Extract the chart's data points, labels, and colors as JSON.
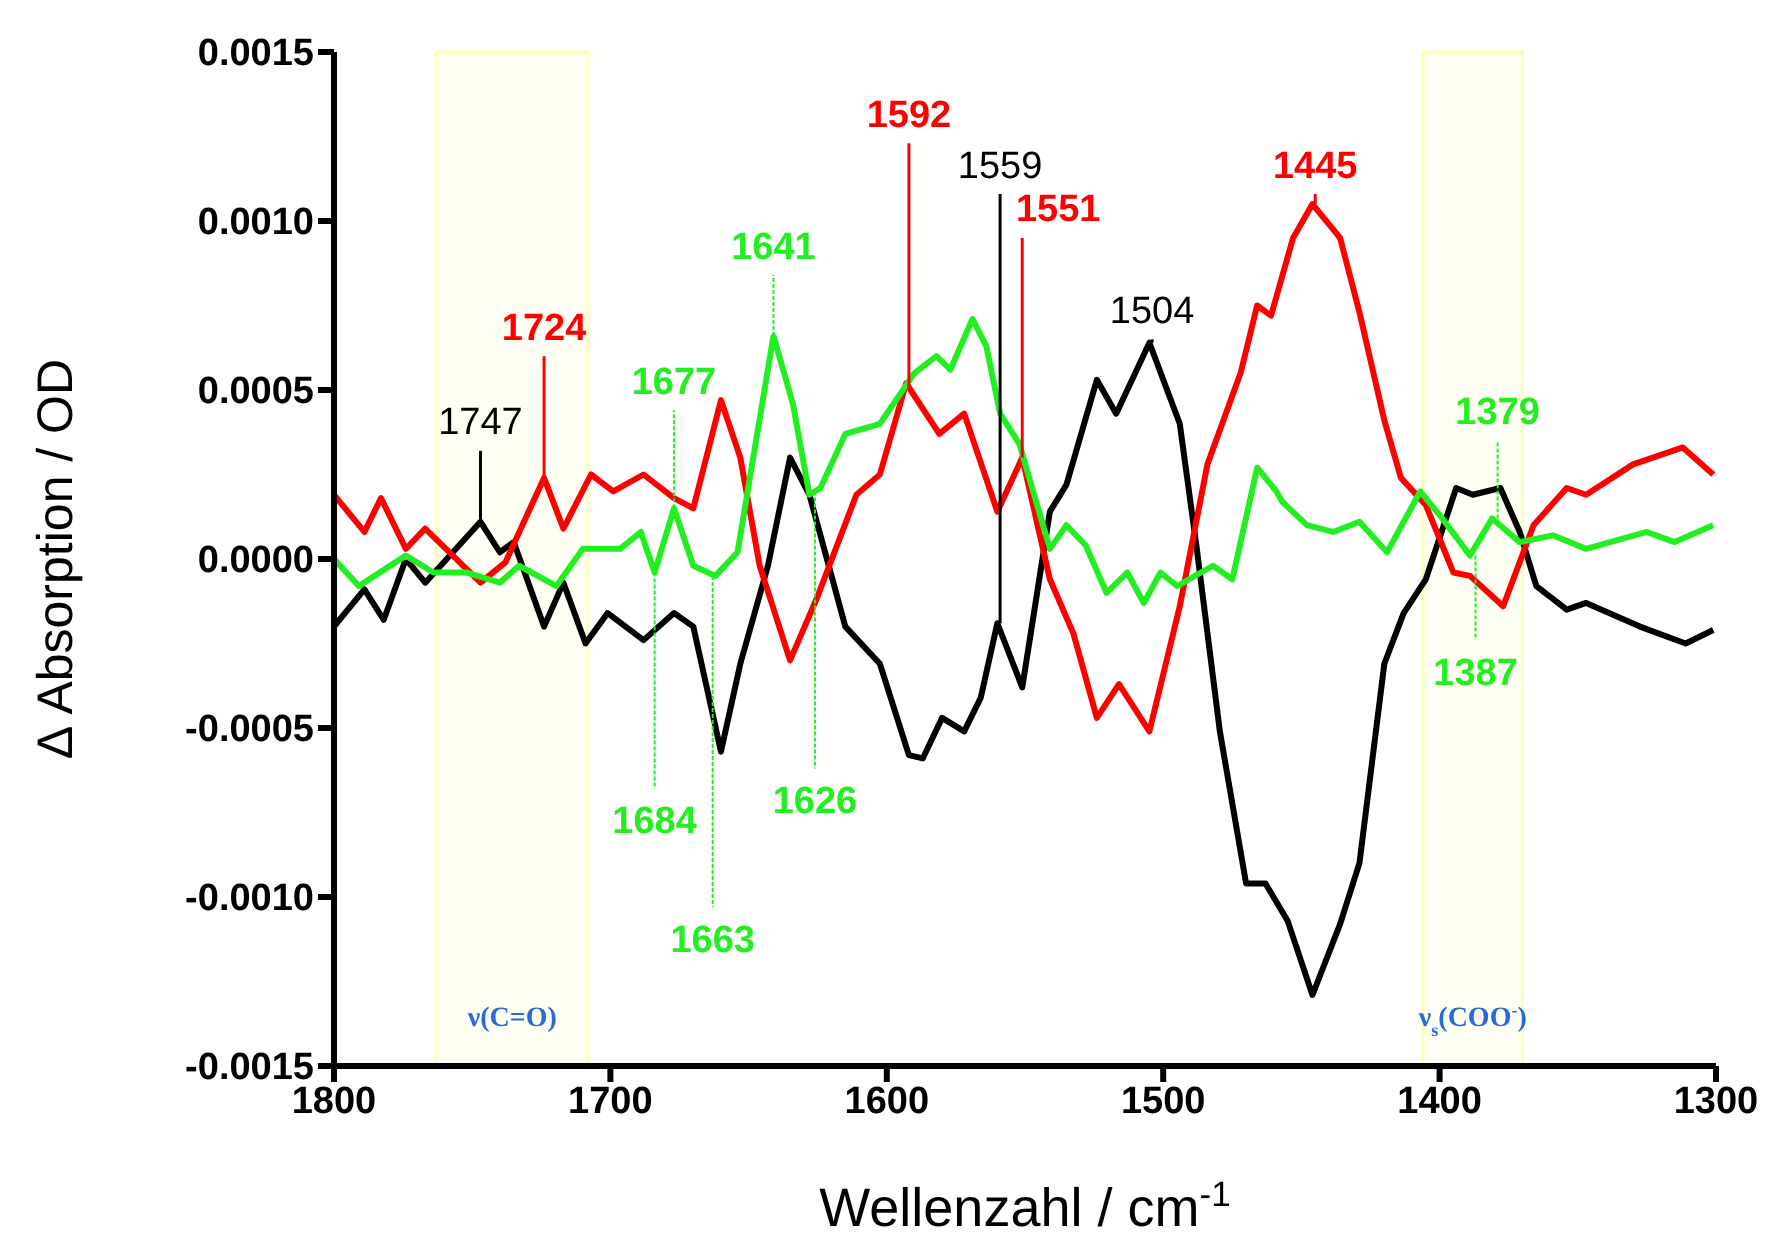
{
  "chart_data": {
    "type": "line",
    "xlabel": "Wellenzahl / cm$^{-1}$",
    "ylabel": "Δ Absorption / OD",
    "xlim": [
      1800,
      1300
    ],
    "xticks": [
      1800,
      1700,
      1600,
      1500,
      1400,
      1300
    ],
    "ylim": [
      -0.0015,
      0.0015
    ],
    "yticks": [
      -0.0015,
      {
        "value": -0.001,
        "label": "-0.0010"
      },
      -0.0005,
      {
        "value": 0,
        "label": "0.0000"
      },
      0.0005,
      {
        "value": 0.001,
        "label": "0.0010"
      },
      0.0015
    ],
    "marker": "none",
    "line_style": "solid",
    "series": [
      {
        "color": "#000000",
        "x": [
          1800,
          1789,
          1782,
          1774,
          1767,
          1747,
          1740,
          1735,
          1724,
          1717,
          1709,
          1701,
          1688,
          1677,
          1670,
          1660,
          1653,
          1643,
          1635,
          1628,
          1615,
          1602.5,
          1592,
          1587,
          1580,
          1572,
          1566,
          1560,
          1551,
          1541,
          1535,
          1524,
          1517,
          1505,
          1494,
          1488,
          1479.5,
          1470,
          1463,
          1455,
          1446,
          1436,
          1429,
          1420,
          1413,
          1405,
          1394,
          1388,
          1378,
          1371,
          1365,
          1354,
          1347,
          1327.5,
          1311,
          1301
        ],
        "values": [
          -0.0002,
          -9e-05,
          -0.00018,
          0,
          -7e-05,
          0.00011,
          2e-05,
          5e-05,
          -0.0002,
          -7e-05,
          -0.00025,
          -0.00016,
          -0.00024,
          -0.00016,
          -0.0002,
          -0.00057,
          -0.00031,
          -2e-05,
          0.0003,
          0.00019,
          -0.0002,
          -0.00031,
          -0.00058,
          -0.00059,
          -0.00047,
          -0.00051,
          -0.00041,
          -0.00019,
          -0.00038,
          0.00014,
          0.00022,
          0.00053,
          0.00043,
          0.00064,
          0.0004,
          4e-05,
          -0.00051,
          -0.00096,
          -0.00096,
          -0.00107,
          -0.00129,
          -0.00108,
          -0.0009,
          -0.00031,
          -0.00016,
          -6e-05,
          0.00021,
          0.00019,
          0.00021,
          8e-05,
          -8e-05,
          -0.00015,
          -0.00013,
          -0.0002,
          -0.00025,
          -0.00021
        ]
      },
      {
        "color": "#ff0000",
        "x": [
          1800,
          1789,
          1783,
          1774,
          1767,
          1747,
          1738,
          1724,
          1717,
          1707,
          1699,
          1688,
          1677,
          1670,
          1660,
          1653,
          1646,
          1635,
          1625.5,
          1611,
          1602.5,
          1593,
          1581,
          1572,
          1560,
          1551,
          1541,
          1532.5,
          1524,
          1516,
          1505,
          1494,
          1484,
          1472,
          1466,
          1461,
          1453,
          1446,
          1436,
          1429,
          1420,
          1414,
          1405,
          1395,
          1389,
          1377,
          1366,
          1354,
          1347,
          1330,
          1312,
          1301
        ],
        "values": [
          0.00019,
          8e-05,
          0.00018,
          3e-05,
          9e-05,
          -7e-05,
          -1e-05,
          0.00024,
          9e-05,
          0.00025,
          0.0002,
          0.00025,
          0.00018,
          0.00015,
          0.00047,
          0.0003,
          -2e-05,
          -0.0003,
          -0.00012,
          0.00019,
          0.00025,
          0.00052,
          0.00037,
          0.00043,
          0.00014,
          0.0003,
          -6e-05,
          -0.00022,
          -0.00047,
          -0.00037,
          -0.00051,
          -0.00014,
          0.00028,
          0.00055,
          0.00075,
          0.00072,
          0.00095,
          0.00105,
          0.00095,
          0.00073,
          0.00041,
          0.00024,
          0.00016,
          -4e-05,
          -5e-05,
          -0.00014,
          0.0001,
          0.00021,
          0.00019,
          0.00028,
          0.00033,
          0.00025
        ]
      },
      {
        "color": "#22ee22",
        "x": [
          1800,
          1791,
          1774,
          1764,
          1752,
          1740,
          1733,
          1719.5,
          1710,
          1696.5,
          1689,
          1684,
          1677,
          1670,
          1662,
          1654,
          1641,
          1634,
          1628,
          1624,
          1615,
          1602.5,
          1590,
          1582,
          1577,
          1569,
          1564,
          1559,
          1552,
          1541,
          1535,
          1528,
          1520.5,
          1513,
          1507,
          1501,
          1495,
          1482,
          1475,
          1466,
          1459,
          1457,
          1448,
          1438.5,
          1429,
          1419,
          1407,
          1399,
          1389,
          1381,
          1371,
          1359,
          1347,
          1325,
          1315,
          1301
        ],
        "values": [
          0,
          -8e-05,
          1e-05,
          -4e-05,
          -4e-05,
          -7e-05,
          -2e-05,
          -8e-05,
          3e-05,
          3e-05,
          8e-05,
          -4e-05,
          0.00015,
          -2e-05,
          -5e-05,
          2e-05,
          0.00066,
          0.00046,
          0.00019,
          0.00021,
          0.00037,
          0.0004,
          0.00055,
          0.0006,
          0.00056,
          0.00071,
          0.00063,
          0.00043,
          0.00034,
          3e-05,
          0.0001,
          4e-05,
          -0.0001,
          -4e-05,
          -0.00013,
          -4e-05,
          -8e-05,
          -2e-05,
          -6e-05,
          0.00027,
          0.0002,
          0.00017,
          0.0001,
          8e-05,
          0.00011,
          2e-05,
          0.0002,
          0.00012,
          1e-05,
          0.00012,
          5e-05,
          7e-05,
          3e-05,
          8e-05,
          5e-05,
          0.0001
        ]
      }
    ],
    "bands": [
      {
        "axis": "x",
        "from": 1763,
        "to": 1708,
        "label": "ν(C=O)",
        "color": "#ffffb0"
      },
      {
        "axis": "x",
        "from": 1406,
        "to": 1370,
        "label": "ν$_{s}$(COO$^{-}$)",
        "color": "#ffffb0"
      }
    ],
    "annotations": [
      {
        "text": "1747",
        "x": 1747,
        "y": 0.00011
      },
      {
        "text": "1724",
        "x": 1724,
        "y": 0.00024
      },
      {
        "text": "1677",
        "x": 1677,
        "y": 0.00015
      },
      {
        "text": "1641",
        "x": 1641,
        "y": 0.00066
      },
      {
        "text": "1592",
        "x": 1592,
        "y": 0.0005
      },
      {
        "text": "1559",
        "x": 1559,
        "y": -0.00019
      },
      {
        "text": "1551",
        "x": 1551,
        "y": 0.0003
      },
      {
        "text": "1504",
        "x": 1504,
        "y": 0.00064
      },
      {
        "text": "1445",
        "x": 1445,
        "y": 0.00105
      },
      {
        "text": "1379",
        "x": 1379,
        "y": 0.00012
      },
      {
        "text": "1684",
        "x": 1684,
        "y": -4e-05
      },
      {
        "text": "1663",
        "x": 1663,
        "y": -5e-05
      },
      {
        "text": "1626",
        "x": 1626,
        "y": 0.0002
      },
      {
        "text": "1387",
        "x": 1387,
        "y": 1e-05
      }
    ]
  }
}
